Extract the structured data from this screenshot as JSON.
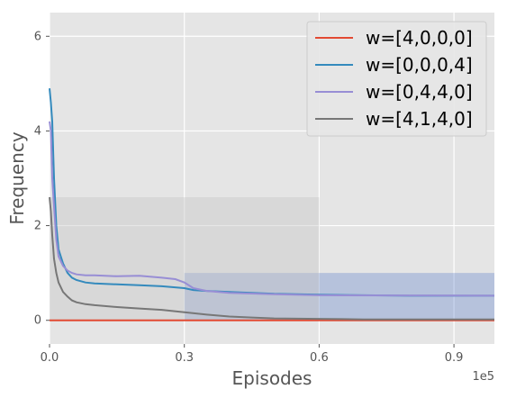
{
  "chart_data": {
    "type": "line",
    "xlabel": "Episodes",
    "ylabel": "Frequency",
    "x_offset_label": "1e5",
    "xlim": [
      0,
      99000
    ],
    "ylim": [
      -0.5,
      6.5
    ],
    "x_ticks": [
      0,
      30000,
      60000,
      90000
    ],
    "x_tick_labels": [
      "0.0",
      "0.3",
      "0.6",
      "0.9"
    ],
    "y_ticks": [
      0,
      2,
      4,
      6
    ],
    "y_tick_labels": [
      "0",
      "2",
      "4",
      "6"
    ],
    "grid": true,
    "legend_position": "top-right",
    "bands": [
      {
        "color": "#4a72c8",
        "x_start": 30000,
        "x_end": 99000,
        "y_low": 0,
        "y_high": 1
      },
      {
        "color": "#c8c8c8",
        "x_start": 0,
        "x_end": 60000,
        "y_low": 0,
        "y_high": 2.6
      }
    ],
    "series": [
      {
        "name": "w=[4,0,0,0]",
        "color": "#E24A33",
        "x": [
          0,
          99000
        ],
        "y": [
          0.0,
          0.0
        ]
      },
      {
        "name": "w=[0,0,0,4]",
        "color": "#348ABD",
        "x": [
          0,
          300,
          600,
          1000,
          1500,
          2000,
          3000,
          4000,
          5000,
          6000,
          8000,
          10000,
          15000,
          20000,
          25000,
          30000,
          32000,
          35000,
          40000,
          45000,
          50000,
          55000,
          60000,
          70000,
          80000,
          90000,
          99000
        ],
        "y": [
          4.9,
          4.6,
          4.2,
          3.0,
          2.0,
          1.5,
          1.2,
          1.0,
          0.9,
          0.85,
          0.8,
          0.78,
          0.76,
          0.74,
          0.72,
          0.68,
          0.64,
          0.62,
          0.6,
          0.58,
          0.56,
          0.55,
          0.54,
          0.53,
          0.52,
          0.52,
          0.52
        ]
      },
      {
        "name": "w=[0,4,4,0]",
        "color": "#988ED5",
        "x": [
          0,
          300,
          600,
          1000,
          1500,
          2000,
          3000,
          4000,
          5000,
          6000,
          8000,
          10000,
          15000,
          20000,
          25000,
          28000,
          30000,
          32000,
          35000,
          40000,
          50000,
          60000,
          99000
        ],
        "y": [
          4.2,
          4.0,
          3.0,
          2.4,
          1.7,
          1.35,
          1.15,
          1.05,
          1.0,
          0.97,
          0.95,
          0.95,
          0.93,
          0.94,
          0.9,
          0.87,
          0.8,
          0.68,
          0.62,
          0.58,
          0.55,
          0.53,
          0.52
        ]
      },
      {
        "name": "w=[4,1,4,0]",
        "color": "#777777",
        "x": [
          0,
          300,
          600,
          1000,
          1500,
          2000,
          3000,
          4000,
          5000,
          6000,
          8000,
          10000,
          15000,
          20000,
          25000,
          30000,
          35000,
          40000,
          45000,
          50000,
          60000,
          70000,
          80000,
          99000
        ],
        "y": [
          2.6,
          2.3,
          1.8,
          1.3,
          1.0,
          0.8,
          0.6,
          0.5,
          0.42,
          0.38,
          0.34,
          0.32,
          0.28,
          0.25,
          0.22,
          0.17,
          0.12,
          0.08,
          0.06,
          0.04,
          0.03,
          0.02,
          0.02,
          0.02
        ]
      }
    ]
  }
}
